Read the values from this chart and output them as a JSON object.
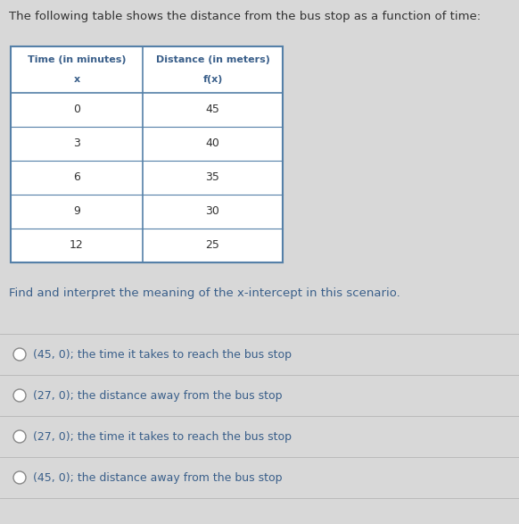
{
  "title": "The following table shows the distance from the bus stop as a function of time:",
  "table_col1_header1": "Time (in minutes)",
  "table_col1_header2": "x",
  "table_col2_header1": "Distance (in meters)",
  "table_col2_header2": "f(x)",
  "table_data": [
    [
      0,
      45
    ],
    [
      3,
      40
    ],
    [
      6,
      35
    ],
    [
      9,
      30
    ],
    [
      12,
      25
    ]
  ],
  "question": "Find and interpret the meaning of the x-intercept in this scenario.",
  "options": [
    "(45, 0); the time it takes to reach the bus stop",
    "(27, 0); the distance away from the bus stop",
    "(27, 0); the time it takes to reach the bus stop",
    "(45, 0); the distance away from the bus stop"
  ],
  "bg_color": "#d8d8d8",
  "table_border_color": "#5580a8",
  "table_header_text_color": "#3a5f8a",
  "table_cell_text_color": "#333333",
  "option_text_color": "#3a5f8a",
  "question_text_color": "#3a5f8a",
  "title_text_color": "#333333",
  "separator_color": "#bbbbbb"
}
